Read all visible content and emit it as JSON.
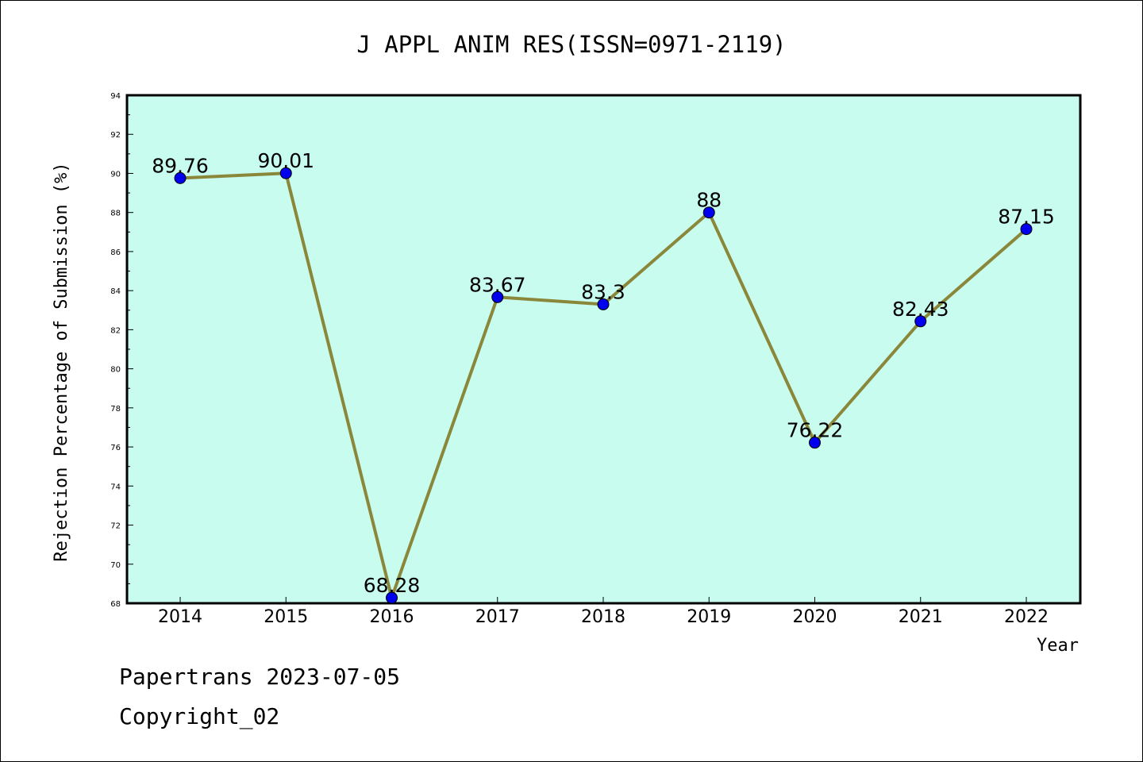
{
  "chart_data": {
    "type": "line",
    "title": "J APPL ANIM RES(ISSN=0971-2119)",
    "xlabel": "Year",
    "ylabel": "Rejection Percentage of Submission (%)",
    "categories": [
      "2014",
      "2015",
      "2016",
      "2017",
      "2018",
      "2019",
      "2020",
      "2021",
      "2022"
    ],
    "values": [
      89.76,
      90.01,
      68.28,
      83.67,
      83.3,
      88,
      76.22,
      82.43,
      87.15
    ],
    "value_labels": [
      "89.76",
      "90.01",
      "68.28",
      "83.67",
      "83.3",
      "88",
      "76.22",
      "82.43",
      "87.15"
    ],
    "ylim": [
      68,
      94
    ],
    "yticks": [
      68,
      70,
      72,
      74,
      76,
      78,
      80,
      82,
      84,
      86,
      88,
      90,
      92,
      94
    ],
    "grid": false,
    "colors": {
      "plot_background": "#c7fcee",
      "line": "#8b873a",
      "marker": "#0000ee"
    }
  },
  "footer": {
    "source": "Papertrans 2023-07-05",
    "copyright": "Copyright_02"
  }
}
